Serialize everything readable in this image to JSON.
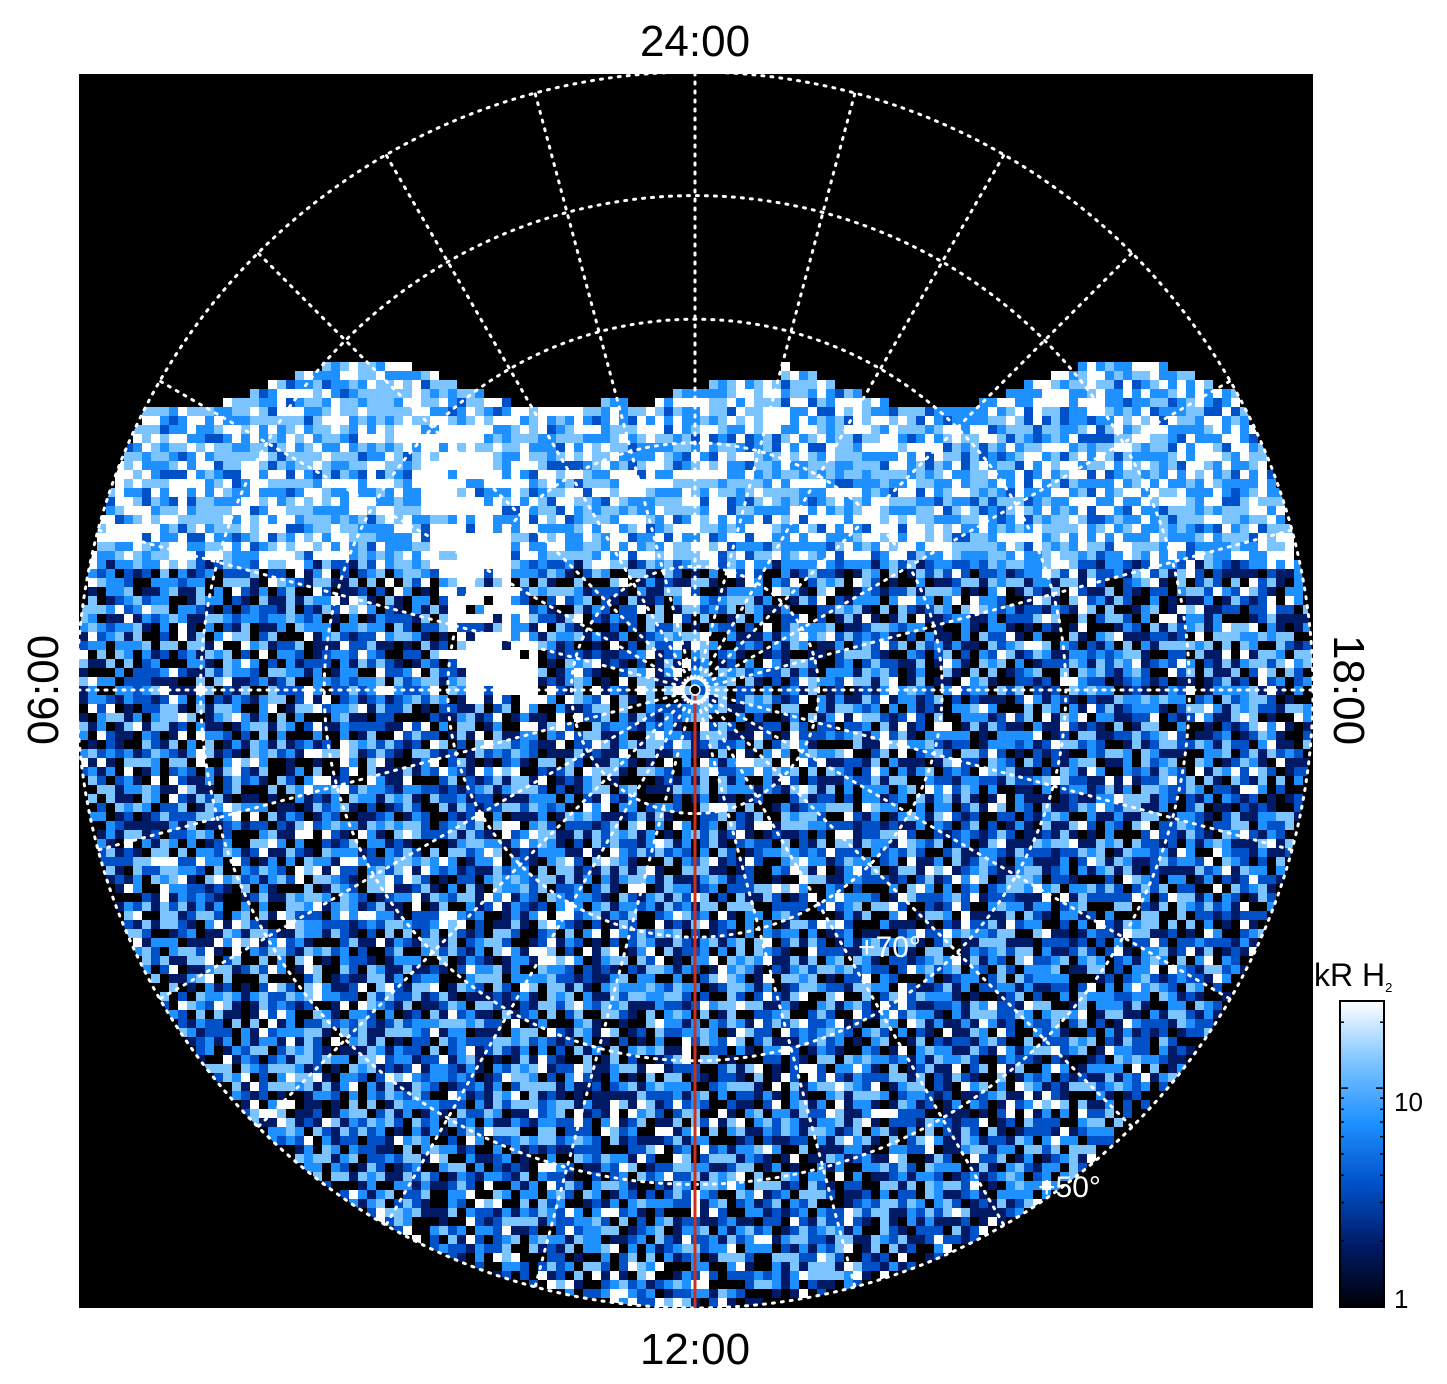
{
  "chart_data": {
    "type": "heatmap",
    "projection": "polar",
    "hour_labels": {
      "top": "24:00",
      "bottom": "12:00",
      "left": "06:00",
      "right": "18:00"
    },
    "latitude_labels": [
      "+70°",
      "+50°"
    ],
    "latitude_circles_deg": [
      80,
      70,
      60,
      50,
      40
    ],
    "meridian_spacing_hours": 1,
    "grid": "dotted",
    "colorbar": {
      "title": "kR H",
      "title_subscript": "2",
      "scale": "log",
      "range": [
        1,
        25
      ],
      "tick_labels": [
        "10",
        "1"
      ],
      "tick_values": [
        10,
        1
      ],
      "colors": [
        "#000008",
        "#001a66",
        "#0050c8",
        "#1e90ff",
        "#7cc4ff",
        "#ffffff"
      ],
      "placement": "right"
    },
    "highlight_meridian": {
      "hour": 12,
      "color": "#c8321e"
    },
    "background_color": "#000000",
    "emission": {
      "description_free": true,
      "auroral_band_center_hour": 24,
      "bright_arc_hour_range": [
        4,
        7
      ]
    }
  }
}
